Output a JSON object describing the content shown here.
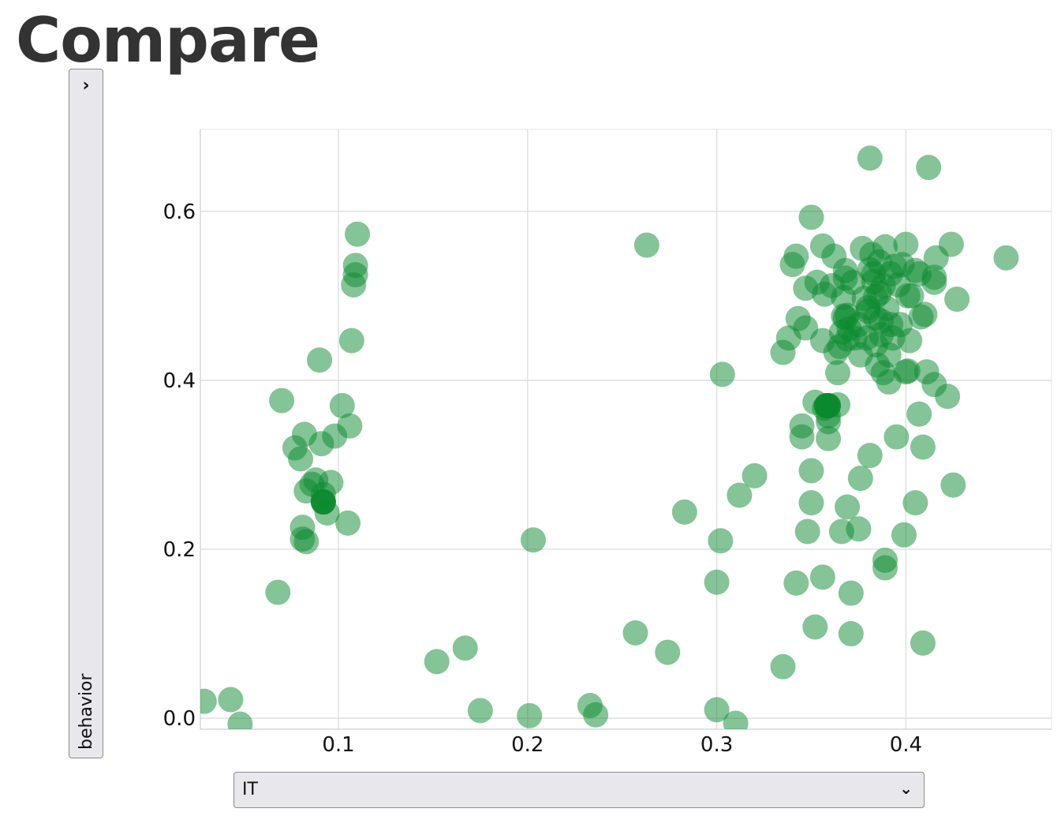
{
  "page": {
    "title": "Compare"
  },
  "y_selector": {
    "label": "behavior",
    "toggle_icon": "chevron-right-icon"
  },
  "x_selector": {
    "value": "IT",
    "dropdown_icon": "chevron-down-icon"
  },
  "chart_data": {
    "type": "scatter",
    "title": "",
    "xlabel": "IT",
    "ylabel": "behavior",
    "xlim": [
      0.027,
      0.477
    ],
    "ylim": [
      -0.013,
      0.697
    ],
    "x_ticks": [
      0.1,
      0.2,
      0.3,
      0.4
    ],
    "x_tick_labels": [
      "0.1",
      "0.2",
      "0.3",
      "0.4"
    ],
    "y_ticks": [
      0.0,
      0.2,
      0.4,
      0.6
    ],
    "y_tick_labels": [
      "0.0",
      "0.2",
      "0.4",
      "0.6"
    ],
    "grid": true,
    "legend": "none",
    "point_color": "#0a8a2e",
    "point_opacity": 0.5,
    "points": [
      [
        0.029,
        0.02
      ],
      [
        0.043,
        0.022
      ],
      [
        0.048,
        -0.007
      ],
      [
        0.068,
        0.149
      ],
      [
        0.07,
        0.376
      ],
      [
        0.077,
        0.32
      ],
      [
        0.08,
        0.307
      ],
      [
        0.082,
        0.336
      ],
      [
        0.081,
        0.226
      ],
      [
        0.081,
        0.212
      ],
      [
        0.083,
        0.209
      ],
      [
        0.083,
        0.269
      ],
      [
        0.086,
        0.277
      ],
      [
        0.088,
        0.282
      ],
      [
        0.09,
        0.424
      ],
      [
        0.091,
        0.325
      ],
      [
        0.092,
        0.265
      ],
      [
        0.092,
        0.256
      ],
      [
        0.092,
        0.256
      ],
      [
        0.094,
        0.243
      ],
      [
        0.096,
        0.279
      ],
      [
        0.098,
        0.334
      ],
      [
        0.102,
        0.37
      ],
      [
        0.105,
        0.231
      ],
      [
        0.106,
        0.346
      ],
      [
        0.107,
        0.447
      ],
      [
        0.108,
        0.513
      ],
      [
        0.109,
        0.525
      ],
      [
        0.109,
        0.536
      ],
      [
        0.11,
        0.573
      ],
      [
        0.152,
        0.067
      ],
      [
        0.167,
        0.083
      ],
      [
        0.175,
        0.009
      ],
      [
        0.201,
        0.003
      ],
      [
        0.203,
        0.211
      ],
      [
        0.233,
        0.015
      ],
      [
        0.236,
        0.004
      ],
      [
        0.257,
        0.101
      ],
      [
        0.263,
        0.56
      ],
      [
        0.274,
        0.078
      ],
      [
        0.283,
        0.244
      ],
      [
        0.3,
        0.161
      ],
      [
        0.3,
        0.01
      ],
      [
        0.302,
        0.21
      ],
      [
        0.303,
        0.407
      ],
      [
        0.31,
        -0.006
      ],
      [
        0.312,
        0.264
      ],
      [
        0.32,
        0.287
      ],
      [
        0.335,
        0.061
      ],
      [
        0.335,
        0.433
      ],
      [
        0.338,
        0.45
      ],
      [
        0.34,
        0.537
      ],
      [
        0.342,
        0.547
      ],
      [
        0.342,
        0.16
      ],
      [
        0.343,
        0.473
      ],
      [
        0.345,
        0.346
      ],
      [
        0.345,
        0.333
      ],
      [
        0.347,
        0.509
      ],
      [
        0.347,
        0.462
      ],
      [
        0.348,
        0.221
      ],
      [
        0.35,
        0.255
      ],
      [
        0.35,
        0.293
      ],
      [
        0.35,
        0.593
      ],
      [
        0.352,
        0.108
      ],
      [
        0.352,
        0.374
      ],
      [
        0.353,
        0.516
      ],
      [
        0.356,
        0.167
      ],
      [
        0.356,
        0.559
      ],
      [
        0.356,
        0.447
      ],
      [
        0.357,
        0.502
      ],
      [
        0.357,
        0.367
      ],
      [
        0.358,
        0.37
      ],
      [
        0.359,
        0.37
      ],
      [
        0.359,
        0.358
      ],
      [
        0.359,
        0.351
      ],
      [
        0.359,
        0.331
      ],
      [
        0.361,
        0.512
      ],
      [
        0.362,
        0.547
      ],
      [
        0.363,
        0.433
      ],
      [
        0.364,
        0.371
      ],
      [
        0.364,
        0.409
      ],
      [
        0.365,
        0.44
      ],
      [
        0.366,
        0.221
      ],
      [
        0.366,
        0.457
      ],
      [
        0.367,
        0.476
      ],
      [
        0.367,
        0.498
      ],
      [
        0.368,
        0.474
      ],
      [
        0.368,
        0.53
      ],
      [
        0.368,
        0.521
      ],
      [
        0.369,
        0.25
      ],
      [
        0.369,
        0.477
      ],
      [
        0.369,
        0.449
      ],
      [
        0.37,
        0.461
      ],
      [
        0.371,
        0.148
      ],
      [
        0.371,
        0.1
      ],
      [
        0.372,
        0.516
      ],
      [
        0.373,
        0.45
      ],
      [
        0.375,
        0.224
      ],
      [
        0.375,
        0.466
      ],
      [
        0.376,
        0.284
      ],
      [
        0.376,
        0.43
      ],
      [
        0.377,
        0.556
      ],
      [
        0.378,
        0.497
      ],
      [
        0.379,
        0.45
      ],
      [
        0.38,
        0.486
      ],
      [
        0.38,
        0.482
      ],
      [
        0.381,
        0.663
      ],
      [
        0.381,
        0.311
      ],
      [
        0.381,
        0.531
      ],
      [
        0.382,
        0.549
      ],
      [
        0.383,
        0.517
      ],
      [
        0.383,
        0.526
      ],
      [
        0.384,
        0.442
      ],
      [
        0.384,
        0.474
      ],
      [
        0.384,
        0.499
      ],
      [
        0.385,
        0.418
      ],
      [
        0.386,
        0.54
      ],
      [
        0.386,
        0.503
      ],
      [
        0.387,
        0.454
      ],
      [
        0.387,
        0.47
      ],
      [
        0.388,
        0.409
      ],
      [
        0.388,
        0.512
      ],
      [
        0.389,
        0.187
      ],
      [
        0.389,
        0.178
      ],
      [
        0.389,
        0.558
      ],
      [
        0.39,
        0.485
      ],
      [
        0.391,
        0.43
      ],
      [
        0.391,
        0.398
      ],
      [
        0.392,
        0.466
      ],
      [
        0.392,
        0.526
      ],
      [
        0.393,
        0.45
      ],
      [
        0.394,
        0.535
      ],
      [
        0.395,
        0.333
      ],
      [
        0.396,
        0.513
      ],
      [
        0.397,
        0.466
      ],
      [
        0.398,
        0.537
      ],
      [
        0.399,
        0.217
      ],
      [
        0.4,
        0.561
      ],
      [
        0.4,
        0.41
      ],
      [
        0.401,
        0.411
      ],
      [
        0.401,
        0.5
      ],
      [
        0.402,
        0.447
      ],
      [
        0.403,
        0.5
      ],
      [
        0.405,
        0.255
      ],
      [
        0.405,
        0.53
      ],
      [
        0.407,
        0.36
      ],
      [
        0.407,
        0.526
      ],
      [
        0.408,
        0.475
      ],
      [
        0.409,
        0.089
      ],
      [
        0.409,
        0.321
      ],
      [
        0.41,
        0.478
      ],
      [
        0.411,
        0.41
      ],
      [
        0.412,
        0.652
      ],
      [
        0.415,
        0.522
      ],
      [
        0.415,
        0.516
      ],
      [
        0.415,
        0.395
      ],
      [
        0.416,
        0.545
      ],
      [
        0.422,
        0.381
      ],
      [
        0.424,
        0.561
      ],
      [
        0.425,
        0.276
      ],
      [
        0.427,
        0.496
      ],
      [
        0.453,
        0.545
      ]
    ],
    "highlighted_points": [
      [
        0.092,
        0.256
      ],
      [
        0.358,
        0.37
      ],
      [
        0.359,
        0.37
      ]
    ]
  }
}
